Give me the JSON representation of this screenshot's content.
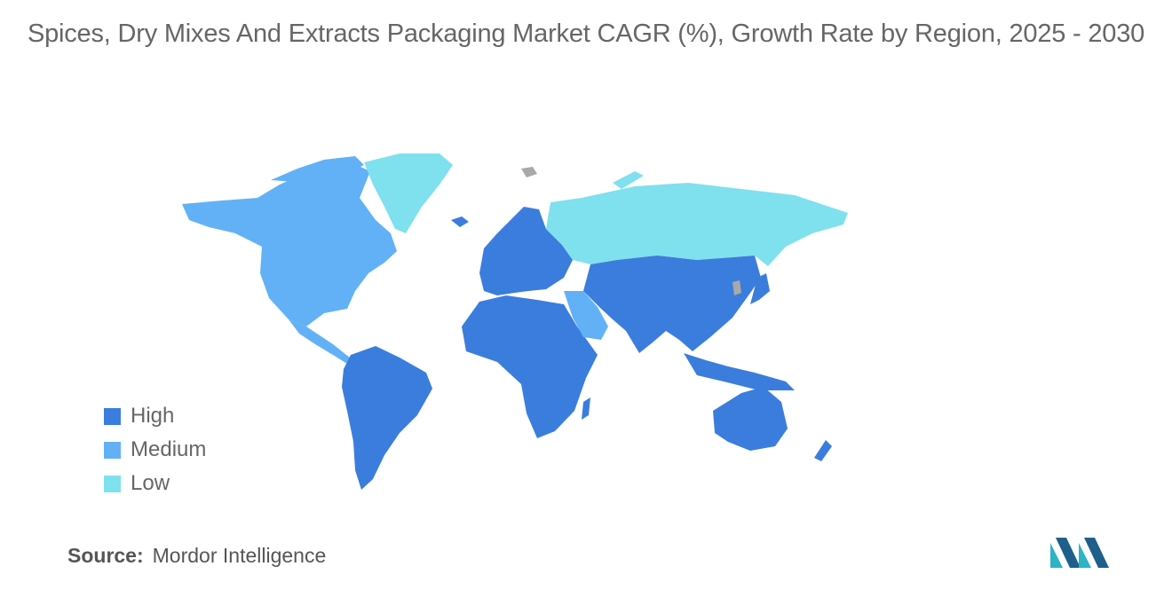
{
  "title": "Spices, Dry Mixes And Extracts Packaging Market CAGR (%), Growth Rate by Region, 2025 - 2030",
  "legend": [
    {
      "label": "High",
      "color": "#3b7ddd"
    },
    {
      "label": "Medium",
      "color": "#62b1f6"
    },
    {
      "label": "Low",
      "color": "#7fe0ee"
    }
  ],
  "source": {
    "label": "Source:",
    "value": "Mordor Intelligence"
  },
  "colors": {
    "high": "#3b7ddd",
    "medium": "#62b1f6",
    "low": "#7fe0ee",
    "no_data": "#a9a9a9"
  },
  "regions": [
    {
      "name": "North America",
      "level": "Medium"
    },
    {
      "name": "Central America & Caribbean",
      "level": "Medium"
    },
    {
      "name": "Greenland",
      "level": "Low"
    },
    {
      "name": "South America",
      "level": "High"
    },
    {
      "name": "Europe",
      "level": "High"
    },
    {
      "name": "Africa",
      "level": "High"
    },
    {
      "name": "Middle East",
      "level": "Medium"
    },
    {
      "name": "Russia",
      "level": "Low"
    },
    {
      "name": "Asia",
      "level": "High"
    },
    {
      "name": "Oceania",
      "level": "High"
    }
  ]
}
